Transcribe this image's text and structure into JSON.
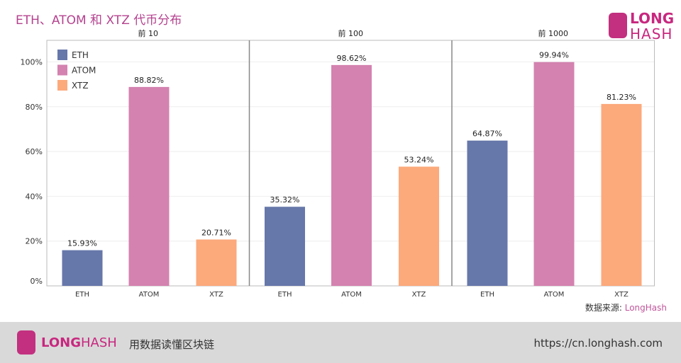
{
  "header": {
    "title": "ETH、ATOM 和 XTZ 代币分布",
    "logo_line1": "LONG",
    "logo_line2": "HASH"
  },
  "chart_data": {
    "type": "bar",
    "ylim": [
      0,
      110
    ],
    "yticks": [
      0,
      20,
      40,
      60,
      80,
      100
    ],
    "ytick_labels": [
      "0%",
      "20%",
      "40%",
      "60%",
      "80%",
      "100%"
    ],
    "grid": true,
    "legend": {
      "placement": "top-left",
      "entries": [
        "ETH",
        "ATOM",
        "XTZ"
      ]
    },
    "colors": {
      "ETH": "#6677aa",
      "ATOM": "#d482b0",
      "XTZ": "#fca97c"
    },
    "categories": [
      "ETH",
      "ATOM",
      "XTZ"
    ],
    "panels": [
      {
        "title": "前 10",
        "values": [
          15.93,
          88.82,
          20.71
        ],
        "labels": [
          "15.93%",
          "88.82%",
          "20.71%"
        ]
      },
      {
        "title": "前 100",
        "values": [
          35.32,
          98.62,
          53.24
        ],
        "labels": [
          "35.32%",
          "98.62%",
          "53.24%"
        ]
      },
      {
        "title": "前 1000",
        "values": [
          64.87,
          99.94,
          81.23
        ],
        "labels": [
          "64.87%",
          "99.94%",
          "81.23%"
        ]
      }
    ]
  },
  "source": {
    "label": "数据来源:",
    "name": "LongHash"
  },
  "footer": {
    "brand_bold": "LONG",
    "brand_light": "HASH",
    "slogan": "用数据读懂区块链",
    "url": "https://cn.longhash.com"
  }
}
